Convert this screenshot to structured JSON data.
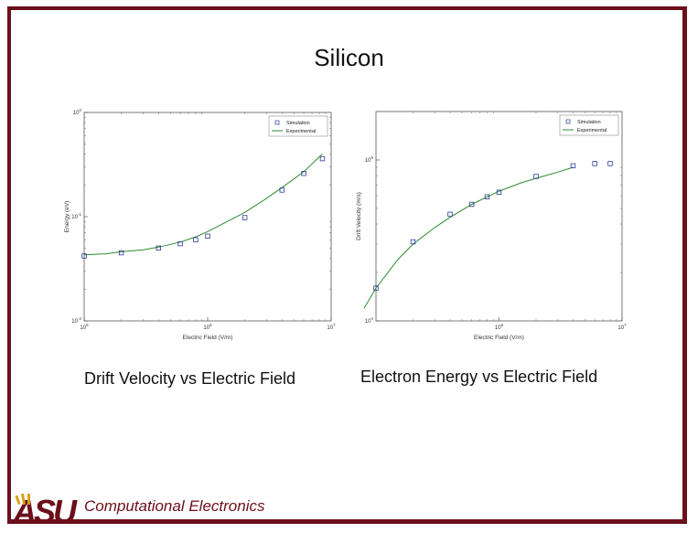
{
  "slide": {
    "title": "Silicon",
    "caption_left": "Drift Velocity vs Electric Field",
    "caption_right": "Electron Energy vs Electric Field",
    "footer": "Computational Electronics",
    "logo_text": "ASU",
    "accent_color": "#6b0f1a"
  },
  "chart_data": [
    {
      "type": "scatter",
      "xlabel": "Electric Field (V/m)",
      "ylabel": "Energy (eV)",
      "xscale": "log",
      "yscale": "log",
      "xlim": [
        100000,
        10000000
      ],
      "ylim": [
        0.01,
        1
      ],
      "x_ticks": [
        {
          "value": 100000,
          "label": "10^5"
        },
        {
          "value": 1000000,
          "label": "10^6"
        },
        {
          "value": 10000000,
          "label": "10^7"
        }
      ],
      "y_ticks": [
        {
          "value": 0.01,
          "label": "10^-2"
        },
        {
          "value": 0.1,
          "label": "10^-1"
        },
        {
          "value": 1,
          "label": "10^0"
        }
      ],
      "legend": {
        "position": "top-right",
        "entries": [
          "Simulation",
          "Experimental"
        ]
      },
      "series": [
        {
          "name": "Simulation",
          "marker": "square",
          "color": "#2a3a9a",
          "x": [
            100000,
            200000,
            400000,
            600000,
            800000,
            1000000,
            2000000,
            4000000,
            6000000,
            8500000
          ],
          "y": [
            0.042,
            0.045,
            0.05,
            0.055,
            0.06,
            0.065,
            0.098,
            0.18,
            0.26,
            0.36
          ]
        },
        {
          "name": "Experimental",
          "line": true,
          "color": "#2e8b2e",
          "x": [
            100000,
            150000,
            200000,
            300000,
            400000,
            600000,
            800000,
            1000000,
            1500000,
            2000000,
            3000000,
            4000000,
            6000000,
            8500000
          ],
          "y": [
            0.043,
            0.044,
            0.046,
            0.048,
            0.051,
            0.057,
            0.064,
            0.072,
            0.092,
            0.11,
            0.15,
            0.19,
            0.27,
            0.4
          ]
        }
      ],
      "grid": false
    },
    {
      "type": "scatter",
      "xlabel": "Electric Field (V/m)",
      "ylabel": "Drift Velocity (m/s)",
      "xscale": "log",
      "yscale": "log",
      "xlim": [
        100000,
        10000000
      ],
      "ylim": [
        10000,
        200000
      ],
      "x_ticks": [
        {
          "value": 1000000,
          "label": "10^6"
        },
        {
          "value": 10000000,
          "label": "10^7"
        }
      ],
      "y_ticks": [
        {
          "value": 10000,
          "label": "10^4"
        },
        {
          "value": 100000,
          "label": "10^5"
        }
      ],
      "legend": {
        "position": "top-right",
        "entries": [
          "Simulation",
          "Experimental"
        ]
      },
      "series": [
        {
          "name": "Simulation",
          "marker": "square",
          "color": "#2a3a9a",
          "x": [
            100000,
            200000,
            400000,
            600000,
            800000,
            1000000,
            2000000,
            4000000,
            6000000,
            8000000
          ],
          "y": [
            16000,
            31000,
            46000,
            53000,
            59000,
            63000,
            79000,
            92000,
            95000,
            95000
          ]
        },
        {
          "name": "Experimental",
          "line": true,
          "color": "#2e8b2e",
          "x": [
            80000,
            100000,
            150000,
            200000,
            300000,
            400000,
            600000,
            800000,
            1000000,
            1500000,
            2000000,
            3000000,
            4000000
          ],
          "y": [
            12000,
            16000,
            24000,
            30000,
            38000,
            44000,
            53000,
            59000,
            64000,
            72000,
            77000,
            84000,
            90000
          ]
        }
      ],
      "grid": false
    }
  ]
}
